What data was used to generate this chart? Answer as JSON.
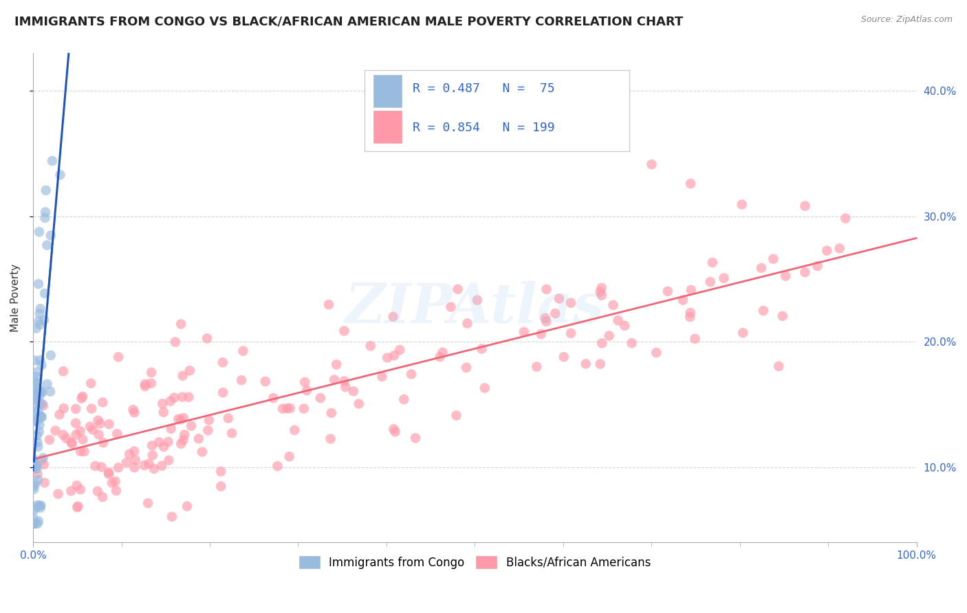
{
  "title": "IMMIGRANTS FROM CONGO VS BLACK/AFRICAN AMERICAN MALE POVERTY CORRELATION CHART",
  "source": "Source: ZipAtlas.com",
  "ylabel": "Male Poverty",
  "R_blue": 0.487,
  "N_blue": 75,
  "R_pink": 0.854,
  "N_pink": 199,
  "xlim": [
    0.0,
    1.0
  ],
  "ylim": [
    0.04,
    0.43
  ],
  "yticks": [
    0.1,
    0.2,
    0.3,
    0.4
  ],
  "ytick_labels": [
    "10.0%",
    "20.0%",
    "30.0%",
    "40.0%"
  ],
  "xtick_labels_left": "0.0%",
  "xtick_labels_right": "100.0%",
  "blue_color": "#99BBDD",
  "pink_color": "#FF99AA",
  "blue_line_color": "#2255BB",
  "pink_line_color": "#EE6677",
  "background_color": "#FFFFFF",
  "grid_color": "#CCCCCC",
  "legend1_label": "Immigrants from Congo",
  "legend2_label": "Blacks/African Americans",
  "title_fontsize": 13,
  "watermark": "ZIPAtlas",
  "legend_R_blue": "R = 0.487",
  "legend_N_blue": "N =  75",
  "legend_R_pink": "R = 0.854",
  "legend_N_pink": "N = 199"
}
